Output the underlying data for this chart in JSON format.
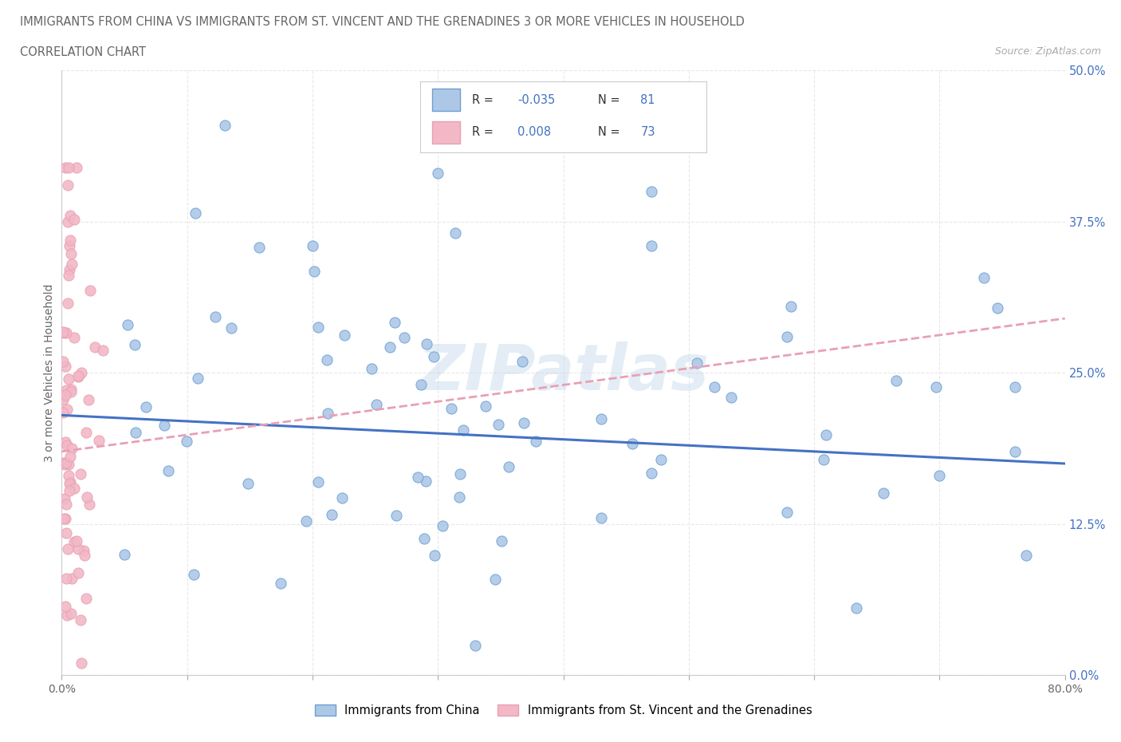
{
  "title_line1": "IMMIGRANTS FROM CHINA VS IMMIGRANTS FROM ST. VINCENT AND THE GRENADINES 3 OR MORE VEHICLES IN HOUSEHOLD",
  "title_line2": "CORRELATION CHART",
  "source_text": "Source: ZipAtlas.com",
  "ylabel": "3 or more Vehicles in Household",
  "legend_label1": "Immigrants from China",
  "legend_label2": "Immigrants from St. Vincent and the Grenadines",
  "R1": -0.035,
  "N1": 81,
  "R2": 0.008,
  "N2": 73,
  "xlim": [
    0.0,
    0.8
  ],
  "ylim": [
    0.0,
    0.5
  ],
  "yticks": [
    0.0,
    0.125,
    0.25,
    0.375,
    0.5
  ],
  "yticklabels": [
    "0.0%",
    "12.5%",
    "25.0%",
    "37.5%",
    "50.0%"
  ],
  "xtick_first": "0.0%",
  "xtick_last": "80.0%",
  "color_china": "#adc8e6",
  "color_svg": "#f2b8c6",
  "edge_china": "#6b9fd4",
  "edge_svg": "#e8a0b4",
  "trendline_china_color": "#4472c4",
  "trendline_svg_color": "#e8a0b4",
  "watermark": "ZIPatlas",
  "background_color": "#ffffff",
  "grid_color": "#e8e8e8",
  "title_color": "#666666",
  "ylabel_color": "#666666",
  "ytick_color": "#4472c4",
  "source_color": "#aaaaaa",
  "legend_r_color": "#333333",
  "legend_val_color": "#4472c4"
}
